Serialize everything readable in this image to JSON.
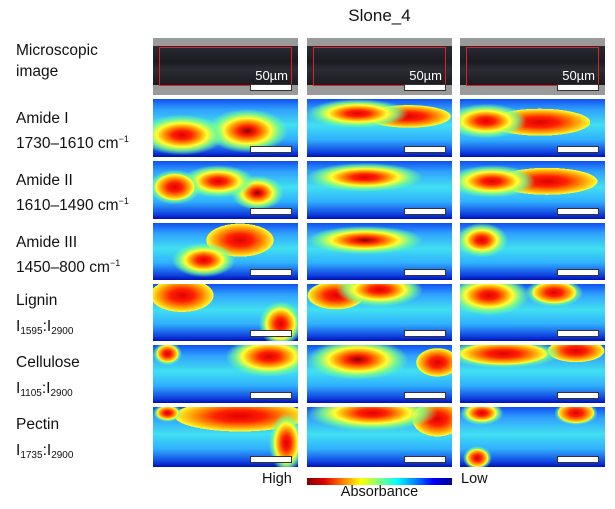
{
  "title": "Slone_4",
  "rows": [
    {
      "line1": "Microscopic",
      "line2": "image"
    },
    {
      "line1": "Amide I",
      "line2": "1730–1610 cm",
      "sup": "−1"
    },
    {
      "line1": "Amide II",
      "line2": "1610–1490 cm",
      "sup": "−1"
    },
    {
      "line1": "Amide III",
      "line2": "1450–800 cm",
      "sup": "−1"
    },
    {
      "line1": "Lignin",
      "a": "I",
      "asub": "1595",
      "b": ":I",
      "bsub": "2900"
    },
    {
      "line1": "Cellulose",
      "a": "I",
      "asub": "1105",
      "b": ":I",
      "bsub": "2900"
    },
    {
      "line1": "Pectin",
      "a": "I",
      "asub": "1735",
      "b": ":I",
      "bsub": "2900"
    }
  ],
  "scale_bar_label": "50µm",
  "colorbar": {
    "high": "High",
    "low": "Low",
    "label": "Absorbance",
    "colors": [
      "#800000",
      "#ff0000",
      "#ffff00",
      "#00ffff",
      "#0000ff",
      "#00008f"
    ]
  }
}
